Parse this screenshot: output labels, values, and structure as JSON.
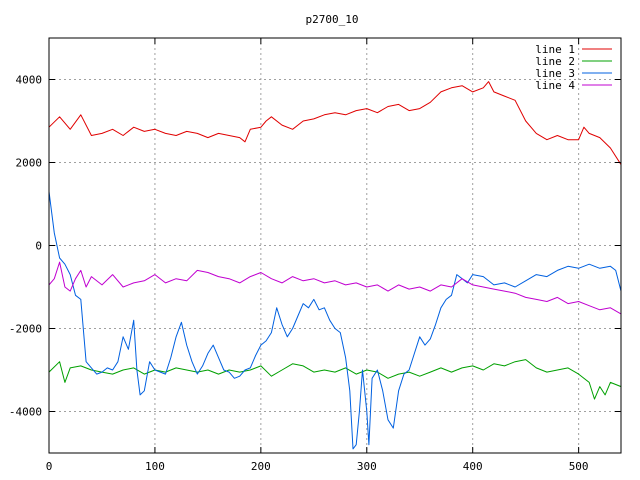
{
  "chart_data": {
    "type": "line",
    "title": "p2700_10",
    "xlabel": "",
    "ylabel": "",
    "xlim": [
      0,
      540
    ],
    "ylim": [
      -5000,
      5000
    ],
    "x_ticks": [
      0,
      100,
      200,
      300,
      400,
      500
    ],
    "y_ticks": [
      -4000,
      -2000,
      0,
      2000,
      4000
    ],
    "grid": true,
    "legend_position": "top-right",
    "series": [
      {
        "name": "line 1",
        "color": "#e00000",
        "points": [
          [
            0,
            2850
          ],
          [
            10,
            3100
          ],
          [
            20,
            2800
          ],
          [
            30,
            3150
          ],
          [
            40,
            2650
          ],
          [
            50,
            2700
          ],
          [
            60,
            2800
          ],
          [
            70,
            2650
          ],
          [
            80,
            2850
          ],
          [
            90,
            2750
          ],
          [
            100,
            2800
          ],
          [
            110,
            2700
          ],
          [
            120,
            2650
          ],
          [
            130,
            2750
          ],
          [
            140,
            2700
          ],
          [
            150,
            2600
          ],
          [
            160,
            2700
          ],
          [
            170,
            2650
          ],
          [
            180,
            2600
          ],
          [
            185,
            2500
          ],
          [
            190,
            2800
          ],
          [
            200,
            2850
          ],
          [
            205,
            3000
          ],
          [
            210,
            3100
          ],
          [
            220,
            2900
          ],
          [
            230,
            2800
          ],
          [
            240,
            3000
          ],
          [
            250,
            3050
          ],
          [
            260,
            3150
          ],
          [
            270,
            3200
          ],
          [
            280,
            3150
          ],
          [
            290,
            3250
          ],
          [
            300,
            3300
          ],
          [
            310,
            3200
          ],
          [
            320,
            3350
          ],
          [
            330,
            3400
          ],
          [
            340,
            3250
          ],
          [
            350,
            3300
          ],
          [
            360,
            3450
          ],
          [
            370,
            3700
          ],
          [
            380,
            3800
          ],
          [
            390,
            3850
          ],
          [
            400,
            3700
          ],
          [
            410,
            3800
          ],
          [
            415,
            3950
          ],
          [
            420,
            3700
          ],
          [
            430,
            3600
          ],
          [
            440,
            3500
          ],
          [
            450,
            3000
          ],
          [
            460,
            2700
          ],
          [
            470,
            2550
          ],
          [
            480,
            2650
          ],
          [
            490,
            2550
          ],
          [
            500,
            2550
          ],
          [
            505,
            2850
          ],
          [
            510,
            2700
          ],
          [
            520,
            2600
          ],
          [
            530,
            2350
          ],
          [
            540,
            1950
          ]
        ]
      },
      {
        "name": "line 2",
        "color": "#00a000",
        "points": [
          [
            0,
            -3050
          ],
          [
            10,
            -2800
          ],
          [
            15,
            -3300
          ],
          [
            20,
            -2950
          ],
          [
            30,
            -2900
          ],
          [
            40,
            -3000
          ],
          [
            50,
            -3050
          ],
          [
            60,
            -3100
          ],
          [
            70,
            -3000
          ],
          [
            80,
            -2950
          ],
          [
            90,
            -3100
          ],
          [
            100,
            -3000
          ],
          [
            110,
            -3050
          ],
          [
            120,
            -2950
          ],
          [
            130,
            -3000
          ],
          [
            140,
            -3050
          ],
          [
            150,
            -3000
          ],
          [
            160,
            -3100
          ],
          [
            170,
            -3000
          ],
          [
            180,
            -3050
          ],
          [
            190,
            -3000
          ],
          [
            200,
            -2900
          ],
          [
            210,
            -3150
          ],
          [
            220,
            -3000
          ],
          [
            230,
            -2850
          ],
          [
            240,
            -2900
          ],
          [
            250,
            -3050
          ],
          [
            260,
            -3000
          ],
          [
            270,
            -3050
          ],
          [
            280,
            -2950
          ],
          [
            290,
            -3100
          ],
          [
            300,
            -3000
          ],
          [
            310,
            -3050
          ],
          [
            320,
            -3200
          ],
          [
            330,
            -3100
          ],
          [
            340,
            -3050
          ],
          [
            350,
            -3150
          ],
          [
            360,
            -3050
          ],
          [
            370,
            -2950
          ],
          [
            380,
            -3050
          ],
          [
            390,
            -2950
          ],
          [
            400,
            -2900
          ],
          [
            410,
            -3000
          ],
          [
            420,
            -2850
          ],
          [
            430,
            -2900
          ],
          [
            440,
            -2800
          ],
          [
            450,
            -2750
          ],
          [
            460,
            -2950
          ],
          [
            470,
            -3050
          ],
          [
            480,
            -3000
          ],
          [
            490,
            -2950
          ],
          [
            500,
            -3100
          ],
          [
            510,
            -3300
          ],
          [
            515,
            -3700
          ],
          [
            520,
            -3400
          ],
          [
            525,
            -3600
          ],
          [
            530,
            -3300
          ],
          [
            540,
            -3400
          ]
        ]
      },
      {
        "name": "line 3",
        "color": "#0060e0",
        "points": [
          [
            0,
            1300
          ],
          [
            5,
            300
          ],
          [
            10,
            -300
          ],
          [
            15,
            -450
          ],
          [
            20,
            -700
          ],
          [
            25,
            -1200
          ],
          [
            30,
            -1300
          ],
          [
            35,
            -2800
          ],
          [
            40,
            -2950
          ],
          [
            45,
            -3100
          ],
          [
            50,
            -3050
          ],
          [
            55,
            -2950
          ],
          [
            60,
            -3000
          ],
          [
            65,
            -2800
          ],
          [
            70,
            -2200
          ],
          [
            75,
            -2500
          ],
          [
            80,
            -1800
          ],
          [
            83,
            -3000
          ],
          [
            86,
            -3600
          ],
          [
            90,
            -3500
          ],
          [
            95,
            -2800
          ],
          [
            100,
            -3000
          ],
          [
            110,
            -3100
          ],
          [
            115,
            -2700
          ],
          [
            120,
            -2200
          ],
          [
            125,
            -1850
          ],
          [
            130,
            -2400
          ],
          [
            135,
            -2800
          ],
          [
            140,
            -3100
          ],
          [
            145,
            -2900
          ],
          [
            150,
            -2600
          ],
          [
            155,
            -2400
          ],
          [
            160,
            -2700
          ],
          [
            165,
            -3000
          ],
          [
            170,
            -3050
          ],
          [
            175,
            -3200
          ],
          [
            180,
            -3150
          ],
          [
            185,
            -3000
          ],
          [
            190,
            -2950
          ],
          [
            195,
            -2650
          ],
          [
            200,
            -2400
          ],
          [
            205,
            -2300
          ],
          [
            210,
            -2100
          ],
          [
            215,
            -1500
          ],
          [
            220,
            -1900
          ],
          [
            225,
            -2200
          ],
          [
            230,
            -2000
          ],
          [
            235,
            -1700
          ],
          [
            240,
            -1400
          ],
          [
            245,
            -1500
          ],
          [
            250,
            -1300
          ],
          [
            255,
            -1550
          ],
          [
            260,
            -1500
          ],
          [
            265,
            -1800
          ],
          [
            270,
            -2000
          ],
          [
            275,
            -2100
          ],
          [
            280,
            -2700
          ],
          [
            284,
            -3500
          ],
          [
            287,
            -4900
          ],
          [
            290,
            -4800
          ],
          [
            293,
            -4000
          ],
          [
            296,
            -3000
          ],
          [
            300,
            -4000
          ],
          [
            302,
            -4800
          ],
          [
            305,
            -3200
          ],
          [
            310,
            -3000
          ],
          [
            315,
            -3500
          ],
          [
            320,
            -4200
          ],
          [
            325,
            -4400
          ],
          [
            330,
            -3500
          ],
          [
            335,
            -3100
          ],
          [
            340,
            -3000
          ],
          [
            345,
            -2600
          ],
          [
            350,
            -2200
          ],
          [
            355,
            -2400
          ],
          [
            360,
            -2250
          ],
          [
            365,
            -1900
          ],
          [
            370,
            -1500
          ],
          [
            375,
            -1300
          ],
          [
            380,
            -1200
          ],
          [
            385,
            -700
          ],
          [
            390,
            -800
          ],
          [
            395,
            -900
          ],
          [
            400,
            -700
          ],
          [
            410,
            -750
          ],
          [
            420,
            -950
          ],
          [
            430,
            -900
          ],
          [
            440,
            -1000
          ],
          [
            450,
            -850
          ],
          [
            460,
            -700
          ],
          [
            470,
            -750
          ],
          [
            480,
            -600
          ],
          [
            490,
            -500
          ],
          [
            500,
            -550
          ],
          [
            510,
            -450
          ],
          [
            520,
            -550
          ],
          [
            530,
            -500
          ],
          [
            535,
            -600
          ],
          [
            540,
            -1100
          ]
        ]
      },
      {
        "name": "line 4",
        "color": "#c000d0",
        "points": [
          [
            0,
            -950
          ],
          [
            5,
            -800
          ],
          [
            10,
            -400
          ],
          [
            15,
            -1000
          ],
          [
            20,
            -1100
          ],
          [
            25,
            -800
          ],
          [
            30,
            -600
          ],
          [
            35,
            -1000
          ],
          [
            40,
            -750
          ],
          [
            50,
            -950
          ],
          [
            60,
            -700
          ],
          [
            70,
            -1000
          ],
          [
            80,
            -900
          ],
          [
            90,
            -850
          ],
          [
            100,
            -700
          ],
          [
            110,
            -900
          ],
          [
            120,
            -800
          ],
          [
            130,
            -850
          ],
          [
            140,
            -600
          ],
          [
            150,
            -650
          ],
          [
            160,
            -750
          ],
          [
            170,
            -800
          ],
          [
            180,
            -900
          ],
          [
            190,
            -750
          ],
          [
            200,
            -650
          ],
          [
            210,
            -800
          ],
          [
            220,
            -900
          ],
          [
            230,
            -750
          ],
          [
            240,
            -850
          ],
          [
            250,
            -800
          ],
          [
            260,
            -900
          ],
          [
            270,
            -850
          ],
          [
            280,
            -950
          ],
          [
            290,
            -900
          ],
          [
            300,
            -1000
          ],
          [
            310,
            -950
          ],
          [
            320,
            -1100
          ],
          [
            330,
            -950
          ],
          [
            340,
            -1050
          ],
          [
            350,
            -1000
          ],
          [
            360,
            -1100
          ],
          [
            370,
            -950
          ],
          [
            380,
            -1000
          ],
          [
            390,
            -800
          ],
          [
            400,
            -950
          ],
          [
            410,
            -1000
          ],
          [
            420,
            -1050
          ],
          [
            430,
            -1100
          ],
          [
            440,
            -1150
          ],
          [
            450,
            -1250
          ],
          [
            460,
            -1300
          ],
          [
            470,
            -1350
          ],
          [
            480,
            -1250
          ],
          [
            490,
            -1400
          ],
          [
            500,
            -1350
          ],
          [
            510,
            -1450
          ],
          [
            520,
            -1550
          ],
          [
            530,
            -1500
          ],
          [
            540,
            -1650
          ]
        ]
      }
    ]
  }
}
